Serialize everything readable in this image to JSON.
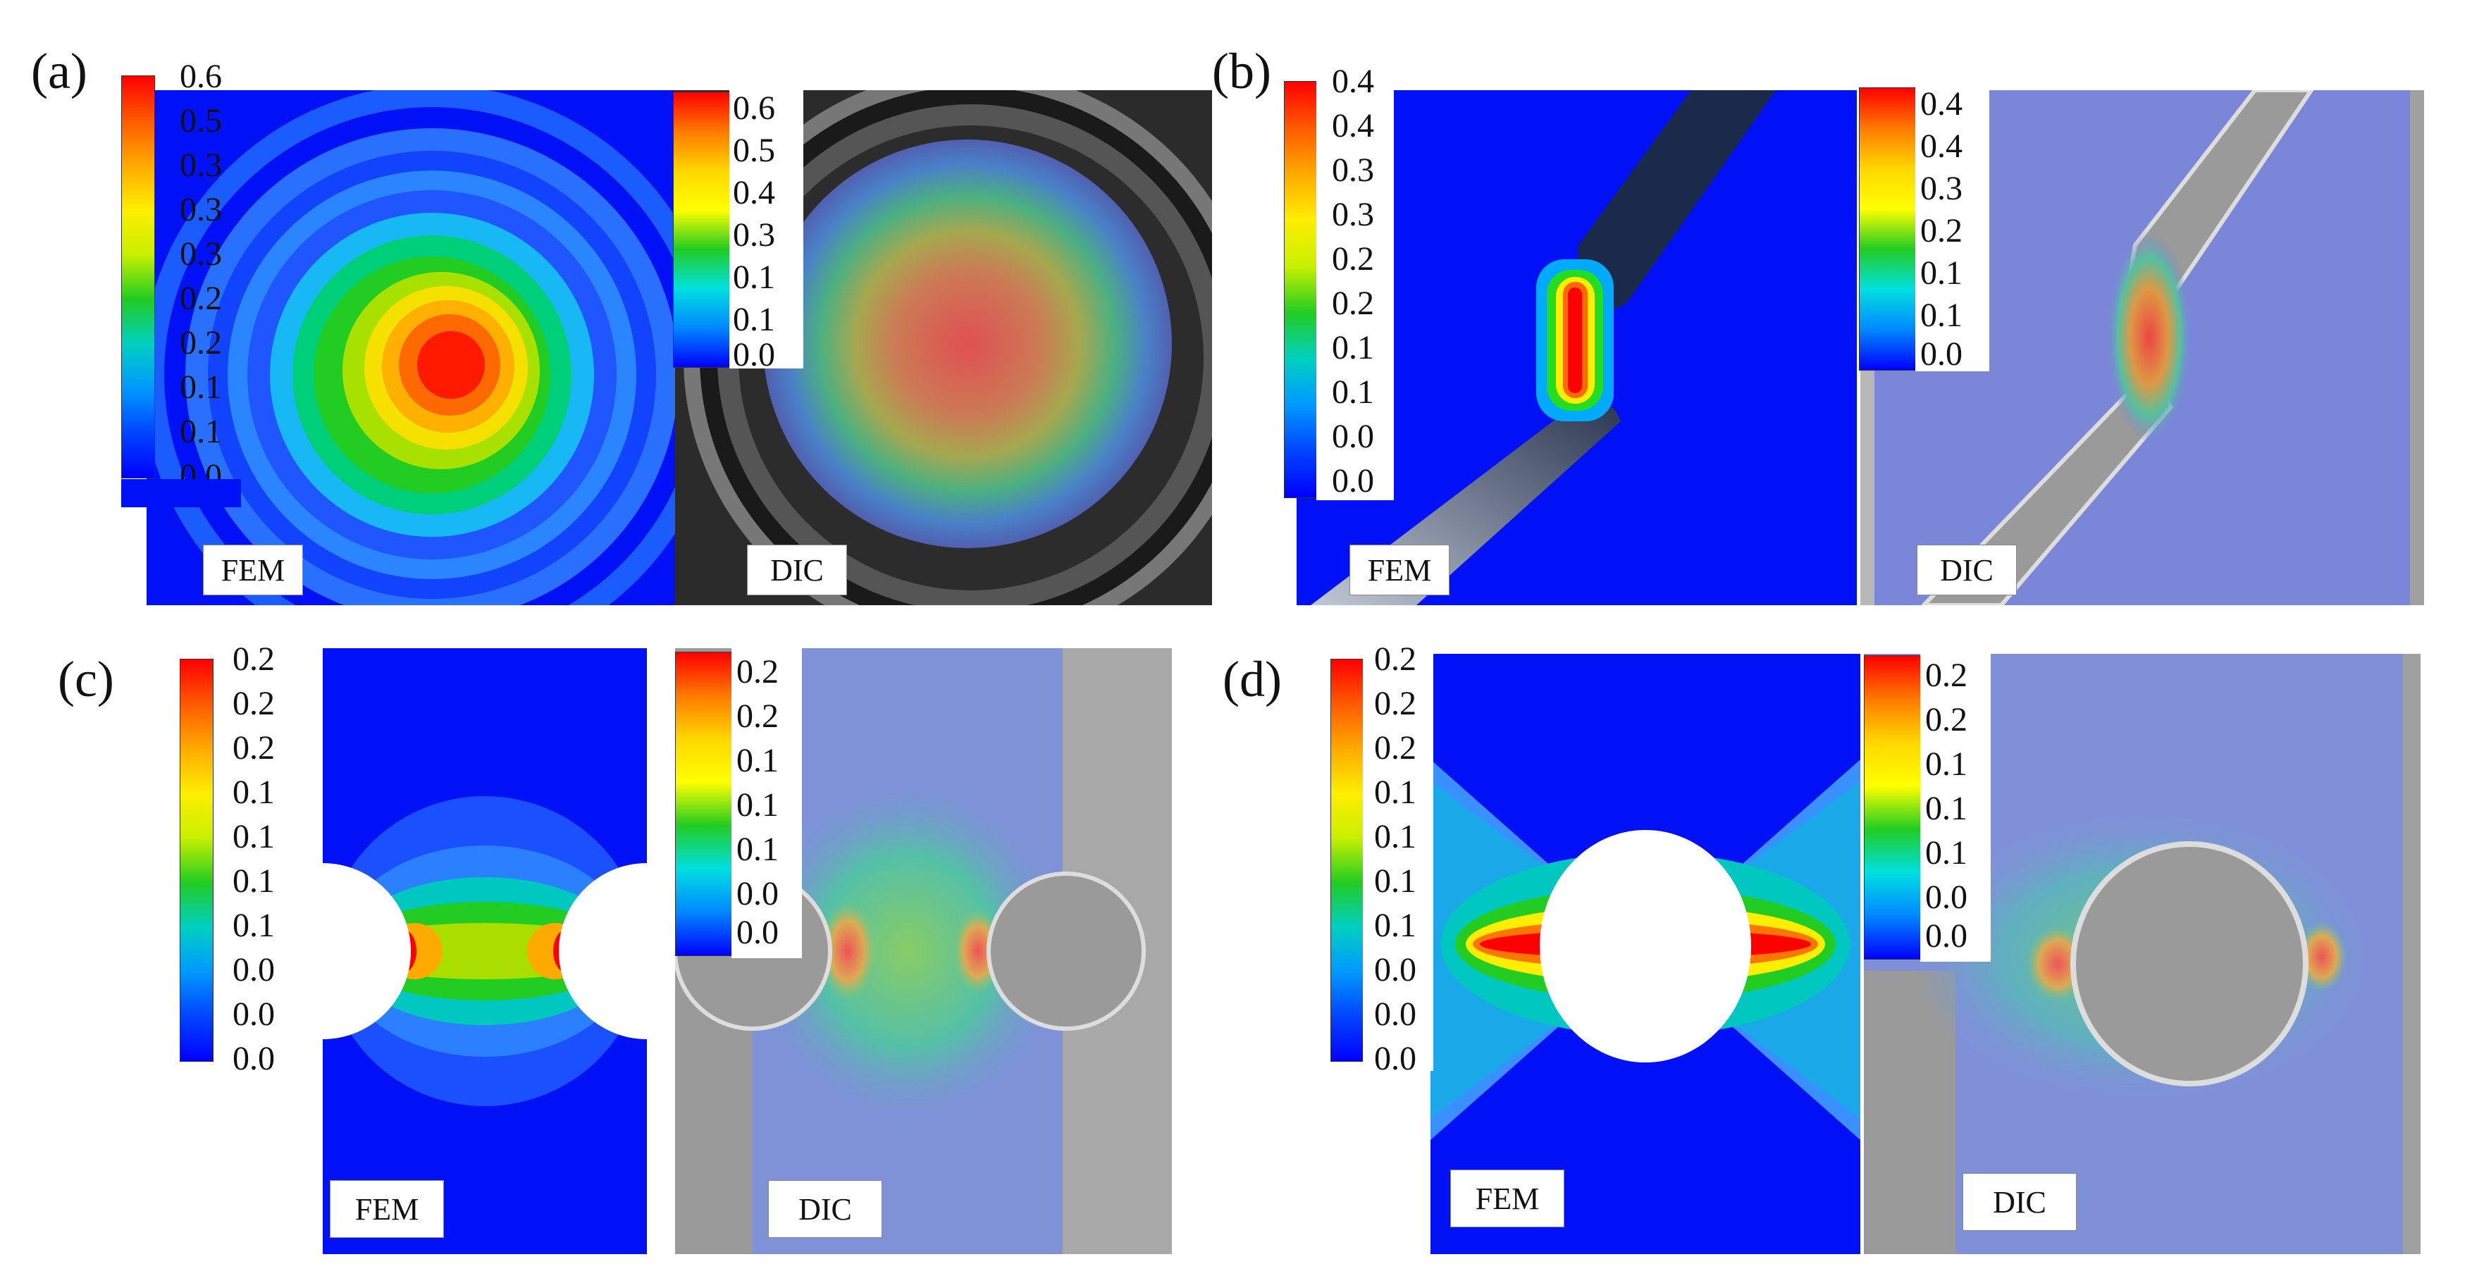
{
  "panels": [
    {
      "label": "(a)",
      "fem": {
        "tag": "FEM",
        "ticks": [
          "0.6",
          "0.5",
          "0.3",
          "0.3",
          "0.3",
          "0.2",
          "0.2",
          "0.1",
          "0.1",
          "0.0"
        ]
      },
      "dic": {
        "tag": "DIC",
        "ticks": [
          "0.6",
          "0.5",
          "0.4",
          "0.3",
          "0.1",
          "0.1",
          "0.0"
        ]
      }
    },
    {
      "label": "(b)",
      "fem": {
        "tag": "FEM",
        "ticks": [
          "0.4",
          "0.4",
          "0.3",
          "0.3",
          "0.2",
          "0.2",
          "0.1",
          "0.1",
          "0.0",
          "0.0"
        ]
      },
      "dic": {
        "tag": "DIC",
        "ticks": [
          "0.4",
          "0.4",
          "0.3",
          "0.2",
          "0.1",
          "0.1",
          "0.0"
        ]
      }
    },
    {
      "label": "(c)",
      "fem": {
        "tag": "FEM",
        "ticks": [
          "0.2",
          "0.2",
          "0.2",
          "0.1",
          "0.1",
          "0.1",
          "0.1",
          "0.0",
          "0.0",
          "0.0"
        ]
      },
      "dic": {
        "tag": "DIC",
        "ticks": [
          "0.2",
          "0.2",
          "0.1",
          "0.1",
          "0.1",
          "0.0",
          "0.0"
        ]
      }
    },
    {
      "label": "(d)",
      "fem": {
        "tag": "FEM",
        "ticks": [
          "0.2",
          "0.2",
          "0.2",
          "0.1",
          "0.1",
          "0.1",
          "0.1",
          "0.0",
          "0.0",
          "0.0"
        ]
      },
      "dic": {
        "tag": "DIC",
        "ticks": [
          "0.2",
          "0.2",
          "0.1",
          "0.1",
          "0.1",
          "0.0",
          "0.0"
        ]
      }
    }
  ],
  "colors": {
    "jet": [
      "#0000ff",
      "#0044ff",
      "#0099ff",
      "#00d9e6",
      "#00c800",
      "#66dd00",
      "#ccee00",
      "#ffee00",
      "#ffaa00",
      "#ff5500",
      "#ff0000"
    ],
    "background_blue": "#0012f5",
    "dic_overlay": "#7a86d8",
    "steel_gray": "#9a9a9a"
  }
}
